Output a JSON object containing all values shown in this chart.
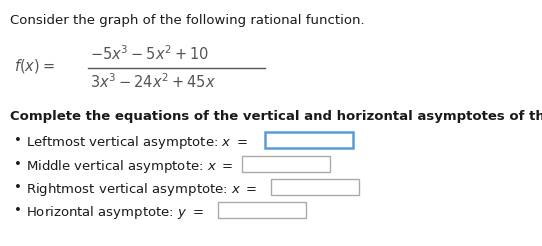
{
  "title": "Consider the graph of the following rational function.",
  "numerator": "$-5x^3 - 5x^2 + 10$",
  "denominator": "$3x^3 - 24x^2 + 45x$",
  "func_label": "$f(x) = $",
  "instruction": "Complete the equations of the vertical and horizontal asymptotes of the graph of this function.",
  "bullets": [
    {
      "label": "Leftmost vertical asymptote: ",
      "var": "x",
      "highlight": true
    },
    {
      "label": "Middle vertical asymptote: ",
      "var": "x",
      "highlight": false
    },
    {
      "label": "Rightmost vertical asymptote: ",
      "var": "x",
      "highlight": false
    },
    {
      "label": "Horizontal asymptote: ",
      "var": "y",
      "highlight": false
    }
  ],
  "bg_color": "#ffffff",
  "text_color": "#1a1a1a",
  "math_color": "#555555",
  "highlight_color": "#5b9bd5",
  "box_border_color": "#aaaaaa",
  "font_title": 9.5,
  "font_formula": 10.5,
  "font_instruction": 9.5,
  "font_bullet": 9.5,
  "figsize": [
    5.42,
    2.46
  ],
  "dpi": 100
}
